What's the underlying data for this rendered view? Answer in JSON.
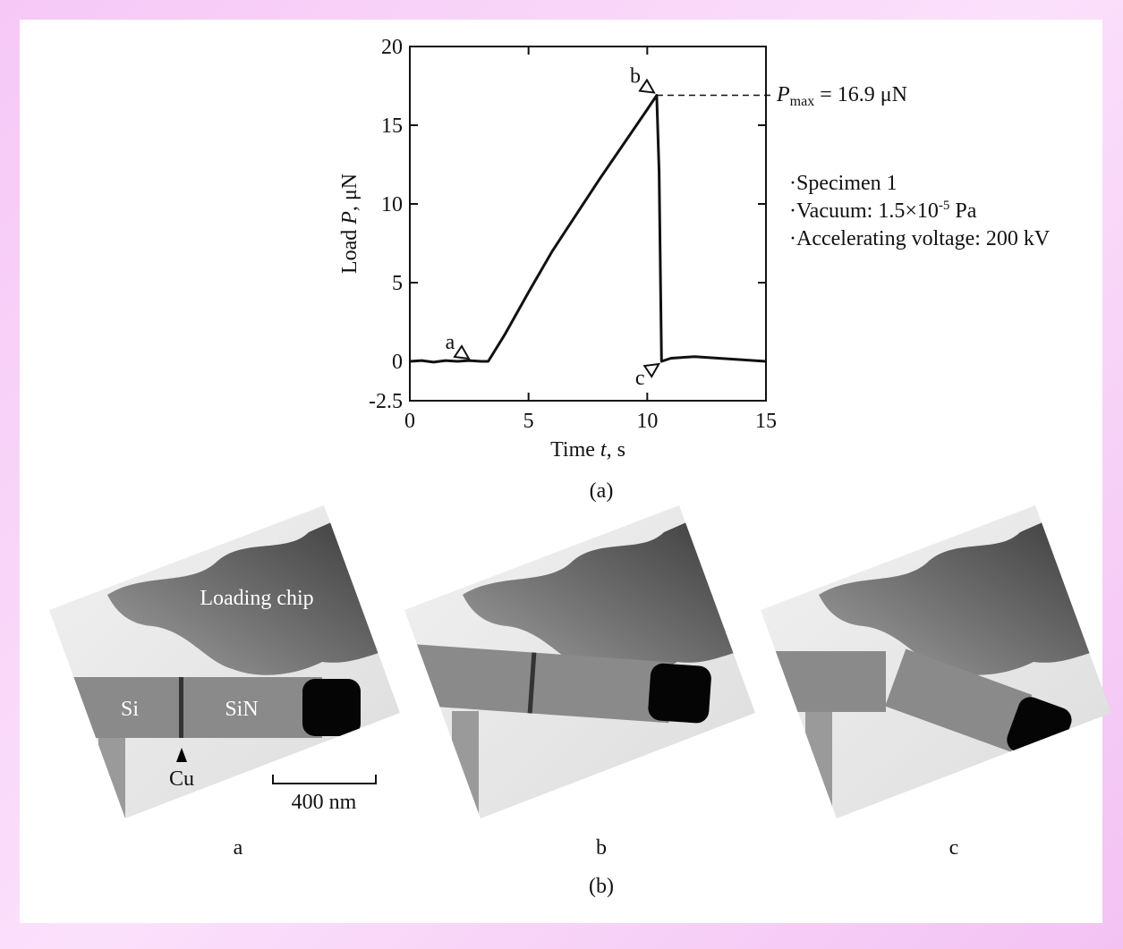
{
  "chart_data": {
    "type": "line",
    "x": [
      0,
      0.5,
      1,
      1.5,
      2,
      2.5,
      3,
      3.3,
      4,
      5,
      6,
      7,
      8,
      9,
      10,
      10.4,
      10.5,
      10.6,
      11,
      12,
      13,
      14,
      15
    ],
    "values": [
      0,
      0.05,
      -0.05,
      0.05,
      0,
      0.05,
      0,
      0,
      1.7,
      4.4,
      7.0,
      9.3,
      11.6,
      13.8,
      16.0,
      16.9,
      12,
      0,
      0.2,
      0.3,
      0.2,
      0.1,
      0
    ],
    "color": "#111111",
    "xlim": [
      0,
      15
    ],
    "xticks": [
      0,
      5,
      10,
      15
    ],
    "ylim": [
      -2.5,
      20
    ],
    "yticks": [
      -2.5,
      0,
      5,
      10,
      15,
      20
    ],
    "x_label": {
      "text": "Time ",
      "symbol": "t",
      "unit": ", s"
    },
    "y_label": {
      "text": "Load ",
      "symbol": "P",
      "unit": ", μN"
    },
    "point_labels": [
      {
        "text": "a",
        "x": 2.6,
        "y": 0
      },
      {
        "text": "b",
        "x": 10.4,
        "y": 16.9
      },
      {
        "text": "c",
        "x": 10.6,
        "y": 0
      }
    ],
    "pmax": {
      "symbol": "P",
      "subscript": "max",
      "text": "= 16.9 μN",
      "value": 16.9
    },
    "notes": [
      "Specimen 1",
      {
        "text": "Vacuum: 1.5×10",
        "sup": "-5",
        "after": " Pa"
      },
      "Accelerating voltage: 200 kV"
    ],
    "caption": "(a)"
  },
  "images": {
    "panels": [
      "a",
      "b",
      "c"
    ],
    "caption": "(b)",
    "loading_chip": "Loading chip",
    "si": "Si",
    "sin": "SiN",
    "cu": "Cu",
    "scale_bar": "400 nm"
  }
}
